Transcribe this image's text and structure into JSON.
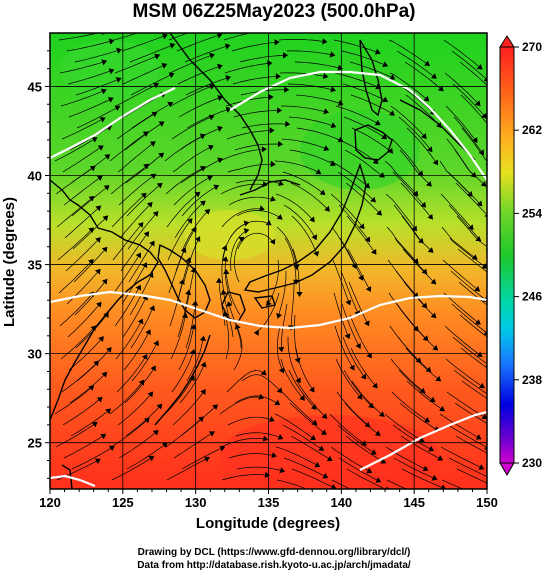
{
  "title": "MSM 06Z25May2023 (500.0hPa)",
  "axes": {
    "xlabel": "Longitude (degrees)",
    "ylabel": "Latitude  (degrees)",
    "xticks": [
      "120",
      "125",
      "130",
      "135",
      "140",
      "145",
      "150"
    ],
    "yticks": [
      "25",
      "30",
      "35",
      "40",
      "45"
    ]
  },
  "colorbar": {
    "labels": [
      "270",
      "262",
      "254",
      "246",
      "238",
      "230"
    ]
  },
  "credits": {
    "line1": "Drawing by DCL (https://www.gfd-dennou.org/library/dcl/)",
    "line2": "Data from http://database.rish.kyoto-u.ac.jp/arch/jmadata/"
  },
  "chart_data": {
    "type": "map",
    "variable": "temperature with wind streamlines",
    "xlim": [
      120,
      150
    ],
    "ylim": [
      22.4,
      48
    ],
    "color_scale": [
      230,
      270
    ],
    "colors": {
      "low": "#cc00cc",
      "blue": "#0000ff",
      "cyan": "#00d0d0",
      "green": "#20c020",
      "yellow": "#e0e020",
      "orange": "#ff9020",
      "high": "#ff2020"
    }
  }
}
